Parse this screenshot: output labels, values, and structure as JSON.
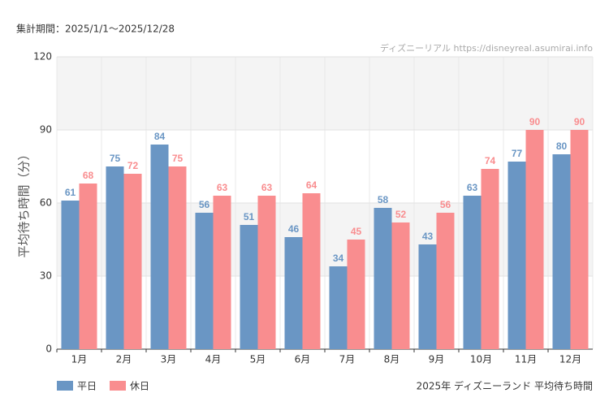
{
  "chart_data": {
    "type": "bar",
    "subtitle": "集計期間：2025/1/1～2025/12/28",
    "watermark": "ディズニーリアル https://disneyreal.asumirai.info",
    "caption": "2025年 ディズニーランド 平均待ち時間",
    "y_label": "平均待ち時間（分）",
    "categories": [
      "1月",
      "2月",
      "3月",
      "4月",
      "5月",
      "6月",
      "7月",
      "8月",
      "9月",
      "10月",
      "11月",
      "12月"
    ],
    "series": [
      {
        "name": "平日",
        "color": "#6a96c4",
        "values": [
          61,
          75,
          84,
          56,
          51,
          46,
          34,
          58,
          43,
          63,
          77,
          80
        ]
      },
      {
        "name": "休日",
        "color": "#f98d8f",
        "values": [
          68,
          72,
          75,
          63,
          63,
          64,
          45,
          52,
          56,
          74,
          90,
          90
        ]
      }
    ],
    "ylim": [
      0,
      120
    ],
    "yticks": [
      0,
      30,
      60,
      90,
      120
    ],
    "grid": true,
    "legend": "bottom-left"
  }
}
